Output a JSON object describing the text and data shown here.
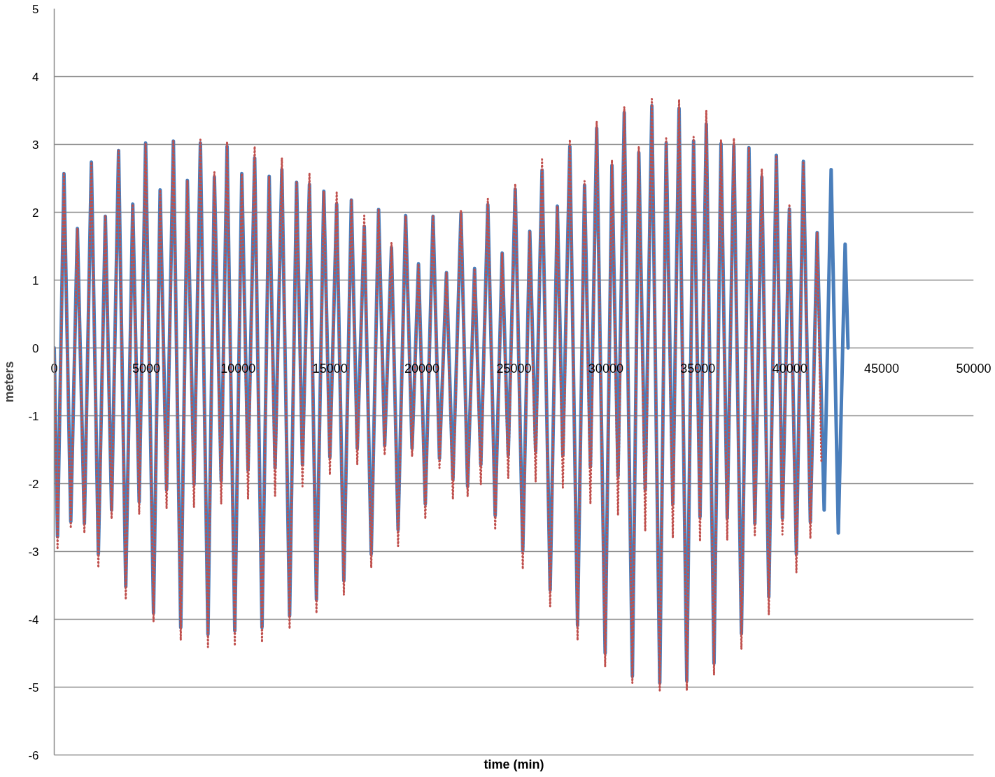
{
  "chart_data": {
    "type": "line",
    "xlabel": "time (min)",
    "ylabel": "meters",
    "xlim": [
      0,
      50000
    ],
    "ylim": [
      -6,
      5
    ],
    "xticks": [
      0,
      5000,
      10000,
      15000,
      20000,
      25000,
      30000,
      35000,
      40000,
      45000,
      50000
    ],
    "yticks": [
      -6,
      -5,
      -4,
      -3,
      -2,
      -1,
      0,
      1,
      2,
      3,
      4,
      5
    ],
    "grid": "y",
    "series": [
      {
        "color": "#4a7ebb",
        "line_style": "solid",
        "x": [
          0,
          180,
          530,
          900,
          1260,
          1640,
          2020,
          2400,
          2780,
          3120,
          3500,
          3890,
          4270,
          4620,
          4970,
          5400,
          5760,
          6110,
          6480,
          6880,
          7240,
          7600,
          7950,
          8360,
          8710,
          9080,
          9400,
          9820,
          10200,
          10540,
          10900,
          11300,
          11690,
          12010,
          12380,
          12800,
          13180,
          13500,
          13880,
          14260,
          14660,
          14990,
          15360,
          15750,
          16160,
          16480,
          16860,
          17240,
          17640,
          17970,
          18340,
          18700,
          19110,
          19460,
          19810,
          20180,
          20600,
          20950,
          21330,
          21680,
          22120,
          22480,
          22860,
          23200,
          23580,
          23980,
          24360,
          24690,
          25070,
          25480,
          25860,
          26180,
          26530,
          26970,
          27360,
          27660,
          28040,
          28460,
          28840,
          29160,
          29500,
          29960,
          30330,
          30660,
          31000,
          31440,
          31790,
          32140,
          32500,
          32930,
          33280,
          33640,
          33980,
          34400,
          34770,
          35120,
          35460,
          35880,
          36260,
          36600,
          36960,
          37370,
          37780,
          38100,
          38480,
          38860,
          39270,
          39600,
          39980,
          40360,
          40740,
          41120,
          41490,
          41870,
          42250,
          42640,
          43010,
          43170
        ],
        "values": [
          0,
          -2.78,
          2.57,
          -2.56,
          1.76,
          -2.59,
          2.74,
          -3.04,
          1.94,
          -2.39,
          2.91,
          -3.52,
          2.12,
          -2.27,
          3.02,
          -3.91,
          2.33,
          -2.09,
          3.05,
          -4.12,
          2.47,
          -2.01,
          3.02,
          -4.22,
          2.52,
          -1.96,
          2.97,
          -4.17,
          2.57,
          -1.8,
          2.8,
          -4.12,
          2.53,
          -1.77,
          2.63,
          -3.95,
          2.44,
          -1.72,
          2.41,
          -3.71,
          2.31,
          -1.61,
          2.12,
          -3.43,
          2.18,
          -1.48,
          1.79,
          -3.04,
          2.04,
          -1.44,
          1.48,
          -2.68,
          1.95,
          -1.48,
          1.24,
          -2.3,
          1.94,
          -1.63,
          1.11,
          -1.94,
          1.98,
          -2.04,
          1.17,
          -1.72,
          2.11,
          -2.47,
          1.4,
          -1.58,
          2.34,
          -2.99,
          1.72,
          -1.52,
          2.62,
          -3.57,
          2.09,
          -1.58,
          2.97,
          -4.09,
          2.4,
          -1.75,
          3.24,
          -4.5,
          2.69,
          -1.89,
          3.47,
          -4.84,
          2.88,
          -2.09,
          3.57,
          -4.94,
          3.02,
          -2.3,
          3.53,
          -4.91,
          3.05,
          -2.49,
          3.3,
          -4.65,
          3.01,
          -2.51,
          2.98,
          -4.21,
          2.95,
          -2.59,
          2.52,
          -3.67,
          2.84,
          -2.51,
          2.05,
          -3.04,
          2.75,
          -2.57,
          1.7,
          -2.39,
          2.63,
          -2.73,
          1.53,
          0
        ]
      },
      {
        "color": "#c0504d",
        "line_style": "dotted",
        "x": [
          0,
          180,
          530,
          900,
          1260,
          1640,
          2020,
          2400,
          2780,
          3120,
          3500,
          3890,
          4270,
          4620,
          4970,
          5400,
          5760,
          6110,
          6480,
          6880,
          7240,
          7600,
          7950,
          8360,
          8710,
          9080,
          9400,
          9820,
          10200,
          10540,
          10900,
          11300,
          11690,
          12010,
          12380,
          12800,
          13180,
          13500,
          13880,
          14260,
          14660,
          14990,
          15360,
          15750,
          16160,
          16480,
          16860,
          17240,
          17640,
          17970,
          18340,
          18700,
          19110,
          19460,
          19810,
          20180,
          20600,
          20950,
          21330,
          21680,
          22120,
          22480,
          22860,
          23200,
          23580,
          23980,
          24360,
          24690,
          25070,
          25480,
          25860,
          26180,
          26530,
          26970,
          27360,
          27660,
          28040,
          28460,
          28840,
          29160,
          29500,
          29960,
          30330,
          30660,
          31000,
          31440,
          31790,
          32140,
          32500,
          32930,
          33280,
          33640,
          33980,
          34400,
          34770,
          35120,
          35460,
          35880,
          36260,
          36600,
          36960,
          37370,
          37780,
          38100,
          38480,
          38860,
          39270,
          39600,
          39980,
          40360,
          40740,
          41120,
          41490,
          41720
        ],
        "values": [
          0,
          -2.97,
          2.57,
          -2.66,
          1.76,
          -2.73,
          2.74,
          -3.24,
          1.94,
          -2.52,
          2.91,
          -3.71,
          2.12,
          -2.45,
          3.02,
          -4.03,
          2.33,
          -2.37,
          3.05,
          -4.31,
          2.47,
          -2.35,
          3.07,
          -4.41,
          2.59,
          -2.3,
          3.04,
          -4.39,
          2.57,
          -2.23,
          2.97,
          -4.34,
          2.53,
          -2.18,
          2.8,
          -4.14,
          2.44,
          -2.04,
          2.58,
          -3.91,
          2.31,
          -1.87,
          2.29,
          -3.64,
          2.18,
          -1.72,
          1.95,
          -3.24,
          2.04,
          -1.58,
          1.55,
          -2.92,
          1.95,
          -1.6,
          1.24,
          -2.52,
          1.94,
          -1.77,
          1.11,
          -2.23,
          2.03,
          -2.19,
          1.17,
          -2.01,
          2.2,
          -2.68,
          1.4,
          -1.92,
          2.42,
          -3.26,
          1.72,
          -1.97,
          2.78,
          -3.81,
          2.09,
          -2.06,
          3.07,
          -4.31,
          2.46,
          -2.3,
          3.34,
          -4.7,
          2.77,
          -2.47,
          3.55,
          -4.94,
          2.97,
          -2.7,
          3.67,
          -5.05,
          3.09,
          -2.8,
          3.66,
          -5.05,
          3.11,
          -2.85,
          3.5,
          -4.82,
          3.07,
          -2.83,
          3.09,
          -4.44,
          2.95,
          -2.76,
          2.64,
          -3.93,
          2.84,
          -2.75,
          2.12,
          -3.31,
          2.75,
          -2.81,
          1.7,
          -1.67
        ]
      }
    ]
  }
}
